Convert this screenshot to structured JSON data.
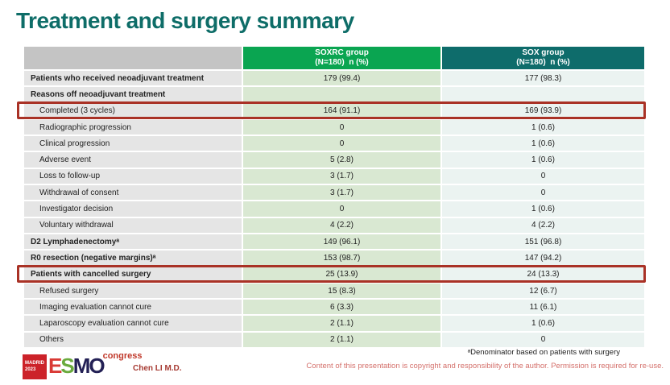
{
  "slide": {
    "title": "Treatment and surgery summary"
  },
  "table": {
    "header": {
      "label": "",
      "soxrc_line1": "SOXRC group",
      "soxrc_line2": "(N=180)  n (%)",
      "sox_line1": "SOX group",
      "sox_line2": "(N=180)  n (%)"
    },
    "rows": [
      {
        "label": "Patients who received neoadjuvant treatment",
        "soxrc": "179 (99.4)",
        "sox": "177 (98.3)",
        "bold": true,
        "indent": false,
        "highlight": false
      },
      {
        "label": "Reasons off neoadjuvant treatment",
        "soxrc": "",
        "sox": "",
        "bold": true,
        "indent": false,
        "highlight": false
      },
      {
        "label": "Completed (3 cycles)",
        "soxrc": "164 (91.1)",
        "sox": "169 (93.9)",
        "bold": false,
        "indent": true,
        "highlight": true
      },
      {
        "label": "Radiographic progression",
        "soxrc": "0",
        "sox": "1 (0.6)",
        "bold": false,
        "indent": true,
        "highlight": false
      },
      {
        "label": "Clinical progression",
        "soxrc": "0",
        "sox": "1 (0.6)",
        "bold": false,
        "indent": true,
        "highlight": false
      },
      {
        "label": "Adverse event",
        "soxrc": "5 (2.8)",
        "sox": "1 (0.6)",
        "bold": false,
        "indent": true,
        "highlight": false
      },
      {
        "label": "Loss to follow-up",
        "soxrc": "3 (1.7)",
        "sox": "0",
        "bold": false,
        "indent": true,
        "highlight": false
      },
      {
        "label": "Withdrawal of consent",
        "soxrc": "3 (1.7)",
        "sox": "0",
        "bold": false,
        "indent": true,
        "highlight": false
      },
      {
        "label": "Investigator decision",
        "soxrc": "0",
        "sox": "1 (0.6)",
        "bold": false,
        "indent": true,
        "highlight": false
      },
      {
        "label": "Voluntary withdrawal",
        "soxrc": "4 (2.2)",
        "sox": "4 (2.2)",
        "bold": false,
        "indent": true,
        "highlight": false
      },
      {
        "label": "D2 Lymphadenectomyᵃ",
        "soxrc": "149 (96.1)",
        "sox": "151 (96.8)",
        "bold": true,
        "indent": false,
        "highlight": false
      },
      {
        "label": "R0 resection (negative margins)ᵃ",
        "soxrc": "153 (98.7)",
        "sox": "147 (94.2)",
        "bold": true,
        "indent": false,
        "highlight": false
      },
      {
        "label": "Patients with cancelled surgery",
        "soxrc": "25 (13.9)",
        "sox": "24 (13.3)",
        "bold": true,
        "indent": false,
        "highlight": true
      },
      {
        "label": "Refused surgery",
        "soxrc": "15 (8.3)",
        "sox": "12 (6.7)",
        "bold": false,
        "indent": true,
        "highlight": false
      },
      {
        "label": "Imaging evaluation cannot cure",
        "soxrc": "6 (3.3)",
        "sox": "11 (6.1)",
        "bold": false,
        "indent": true,
        "highlight": false
      },
      {
        "label": "Laparoscopy evaluation cannot cure",
        "soxrc": "2 (1.1)",
        "sox": "1 (0.6)",
        "bold": false,
        "indent": true,
        "highlight": false
      },
      {
        "label": "Others",
        "soxrc": "2 (1.1)",
        "sox": "0",
        "bold": false,
        "indent": true,
        "highlight": false
      }
    ]
  },
  "footer": {
    "footnote": "ᵃDenominator based on patients with surgery",
    "author": "Chen LI M.D.",
    "copyright": "Content of this presentation is copyright and responsibility of the author. Permission is required for re-use.",
    "logo": {
      "city": "MADRID",
      "year": "2023",
      "letter_e": "E",
      "letter_s": "S",
      "letter_m": "M",
      "letter_o": "O",
      "congress": "congress"
    }
  },
  "colors": {
    "title": "#0e6d68",
    "header_green": "#0aa551",
    "header_teal": "#0e6c6b",
    "header_label_bg": "#c4c4c4",
    "label_cell_bg": "#e5e5e5",
    "soxrc_cell_bg": "#d9e8d2",
    "sox_cell_bg": "#ebf3f1",
    "highlight_border": "#a93226",
    "author_text": "#a63a32",
    "copyright_text": "#d4706b",
    "logo_box_red": "#cc2229"
  }
}
